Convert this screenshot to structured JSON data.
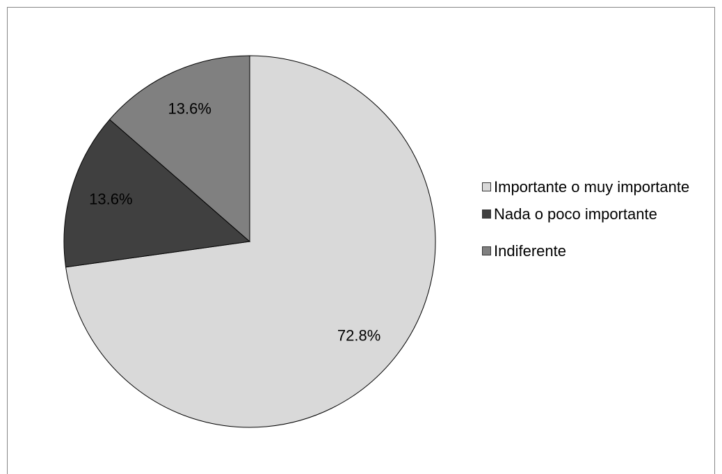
{
  "chart_data": {
    "type": "pie",
    "categories": [
      "Importante o muy importante",
      "Nada o poco importante",
      "Indiferente"
    ],
    "values": [
      72.8,
      13.6,
      13.6
    ],
    "value_labels": [
      "72.8%",
      "13.6%",
      "13.6%"
    ],
    "colors": [
      "#d9d9d9",
      "#404040",
      "#808080"
    ],
    "legend": "right"
  }
}
